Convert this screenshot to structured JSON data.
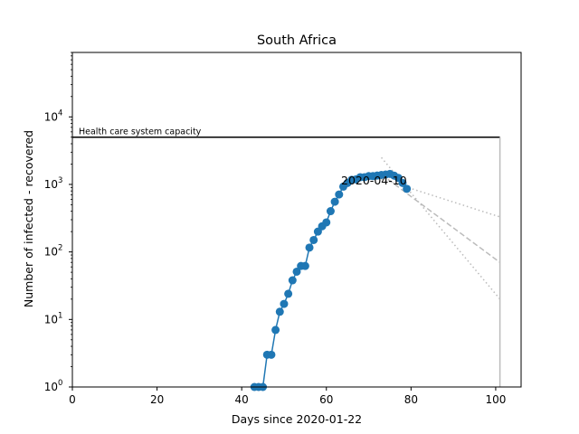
{
  "chart_data": {
    "type": "line",
    "title": "South Africa",
    "xlabel": "Days since 2020-01-22",
    "ylabel": "Number of infected - recovered",
    "x_axis": {
      "range": [
        0,
        106
      ],
      "ticks": [
        0,
        20,
        40,
        60,
        80,
        100
      ],
      "tick_labels": [
        "0",
        "20",
        "40",
        "60",
        "80",
        "100"
      ]
    },
    "y_axis": {
      "scale": "log",
      "range": [
        1,
        90000
      ],
      "major_ticks": [
        1,
        10,
        100,
        1000,
        10000
      ],
      "tick_labels": [
        {
          "base": "10",
          "exp": "0"
        },
        {
          "base": "10",
          "exp": "1"
        },
        {
          "base": "10",
          "exp": "2"
        },
        {
          "base": "10",
          "exp": "3"
        },
        {
          "base": "10",
          "exp": "4"
        }
      ]
    },
    "grid": false,
    "capacity_line": {
      "label": "Health care system capacity",
      "y": 5000,
      "x_range": [
        0,
        101
      ]
    },
    "end_marker_x": 101,
    "annotation": {
      "text": "2020-04-10",
      "x": 79,
      "y": 1000
    },
    "series": [
      {
        "color": "#1f77b4",
        "style": "line-markers",
        "x": [
          43,
          44,
          45,
          46,
          47,
          48,
          49,
          50,
          51,
          52,
          53,
          54,
          55,
          56,
          57,
          58,
          59,
          60,
          61,
          62,
          63,
          64,
          65,
          66,
          67,
          68,
          69,
          70,
          71,
          72,
          73,
          74,
          75,
          76,
          77,
          78,
          79
        ],
        "y": [
          1,
          1,
          1,
          3,
          3,
          7,
          13,
          17,
          24,
          38,
          51,
          62,
          62,
          116,
          150,
          200,
          240,
          274,
          402,
          554,
          709,
          927,
          1050,
          1170,
          1187,
          1280,
          1280,
          1326,
          1326,
          1353,
          1380,
          1400,
          1430,
          1350,
          1250,
          1050,
          860
        ]
      }
    ],
    "projections": [
      {
        "style": "dashed",
        "color": "#bbbbbb",
        "x": [
          73,
          101
        ],
        "y": [
          1400,
          70
        ]
      },
      {
        "style": "dotted",
        "color": "#bbbbbb",
        "x": [
          73,
          101
        ],
        "y": [
          2500,
          20
        ]
      },
      {
        "style": "dotted",
        "color": "#bbbbbb",
        "x": [
          73,
          101
        ],
        "y": [
          1200,
          330
        ]
      }
    ]
  }
}
